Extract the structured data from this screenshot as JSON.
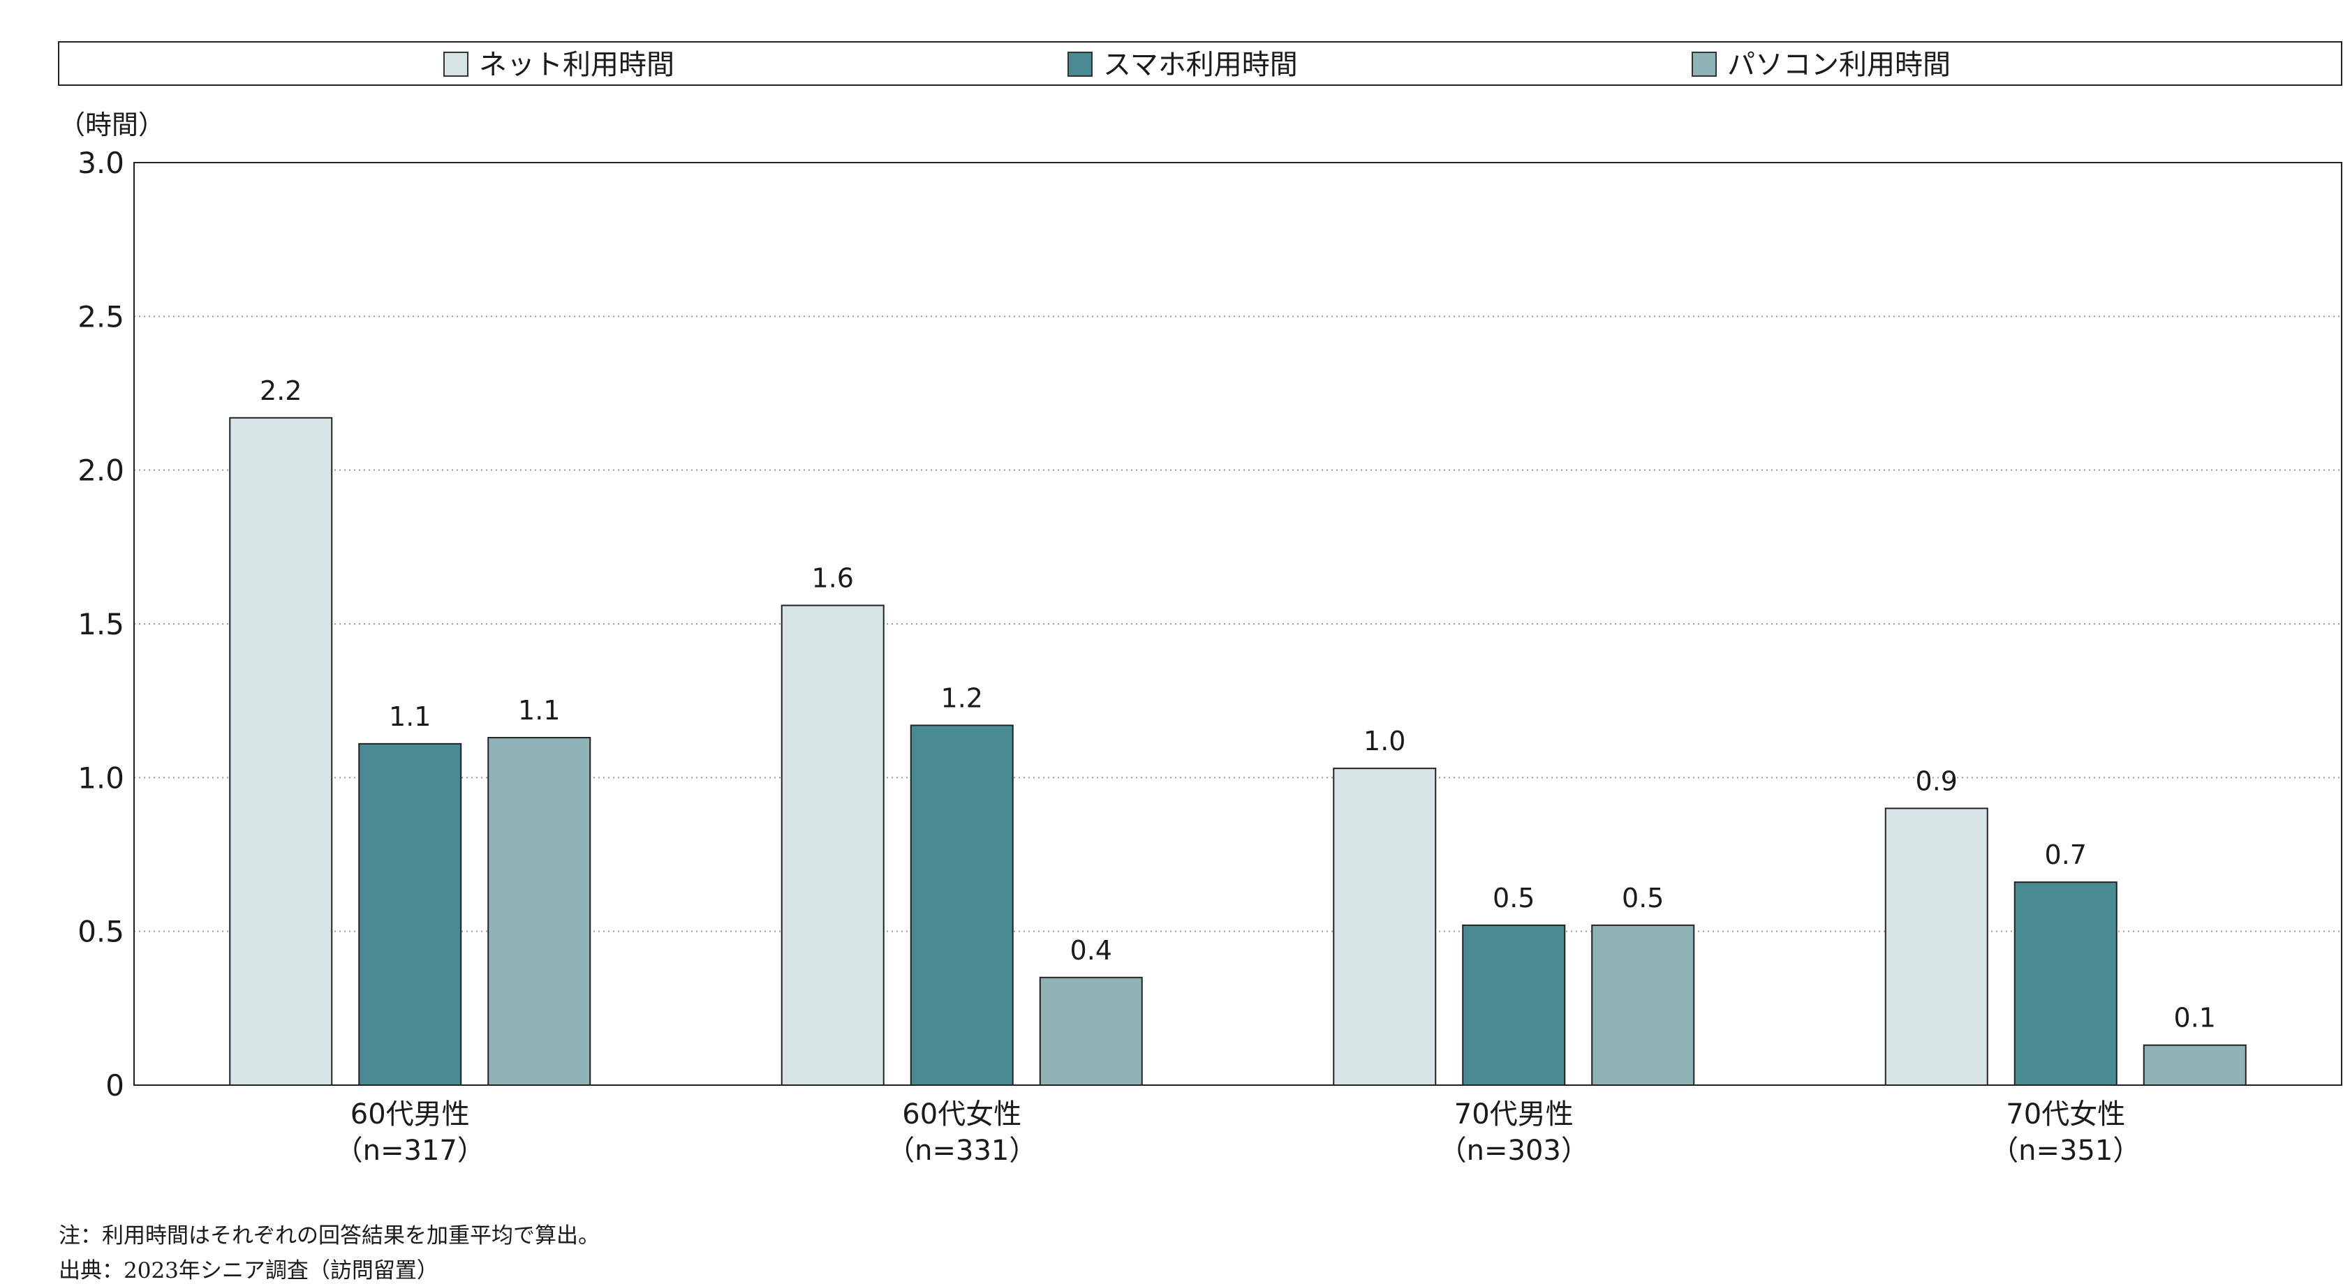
{
  "chart_data": {
    "type": "bar",
    "ylabel": "（時間）",
    "ylim": [
      0,
      3.0
    ],
    "yticks": [
      "0",
      "0.5",
      "1.0",
      "1.5",
      "2.0",
      "2.5",
      "3.0"
    ],
    "grid": true,
    "legend_position": "top",
    "categories": [
      {
        "line1": "60代男性",
        "line2": "（n=317）"
      },
      {
        "line1": "60代女性",
        "line2": "（n=331）"
      },
      {
        "line1": "70代男性",
        "line2": "（n=303）"
      },
      {
        "line1": "70代女性",
        "line2": "（n=351）"
      }
    ],
    "series": [
      {
        "name": "ネット利用時間",
        "color": "#d6e4e5",
        "values": [
          2.17,
          1.56,
          1.03,
          0.9
        ],
        "labels": [
          "2.2",
          "1.6",
          "1.0",
          "0.9"
        ]
      },
      {
        "name": "スマホ利用時間",
        "color": "#4a8a93",
        "values": [
          1.11,
          1.17,
          0.52,
          0.66
        ],
        "labels": [
          "1.1",
          "1.2",
          "0.5",
          "0.7"
        ]
      },
      {
        "name": "パソコン利用時間",
        "color": "#8fb3b7",
        "values": [
          1.13,
          0.35,
          0.52,
          0.13
        ],
        "labels": [
          "1.1",
          "0.4",
          "0.5",
          "0.1"
        ]
      }
    ]
  },
  "notes": {
    "note": "注：利用時間はそれぞれの回答結果を加重平均で算出。",
    "source": "出典：2023年シニア調査（訪問留置）"
  }
}
